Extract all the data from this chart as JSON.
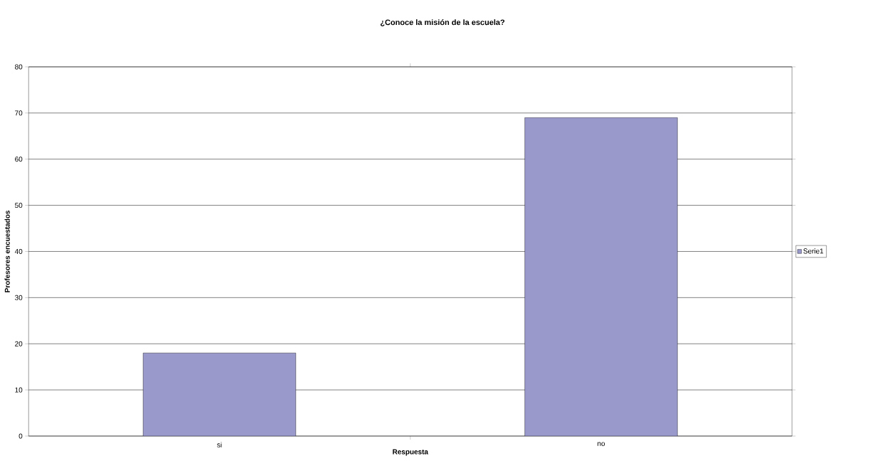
{
  "chart_data": {
    "type": "bar",
    "title": "¿Conoce la misión de la escuela?",
    "xlabel": "Respuesta",
    "ylabel": "Profesores encuestados",
    "categories": [
      "si",
      "no"
    ],
    "series": [
      {
        "name": "Serie1",
        "color": "#9999cc",
        "values": [
          18,
          69
        ]
      }
    ],
    "ylim": [
      0,
      80
    ],
    "yticks": [
      0,
      10,
      20,
      30,
      40,
      50,
      60,
      70,
      80
    ],
    "grid": "y",
    "legend": "right"
  }
}
